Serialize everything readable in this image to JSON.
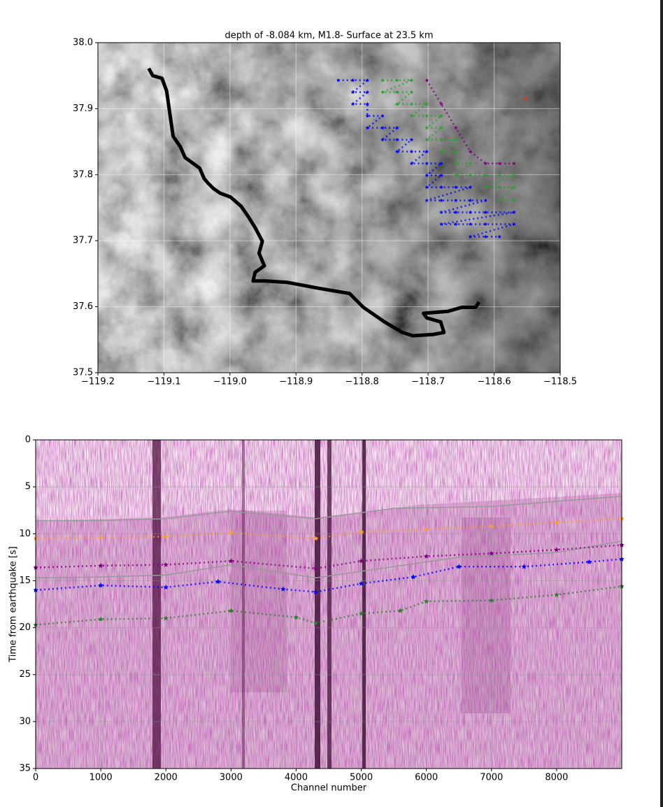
{
  "chart_data": [
    {
      "type": "scatter",
      "title": "depth of -8.084 km, M1.8- Surface at 23.5 km",
      "xlim": [
        -119.2,
        -118.5
      ],
      "xticks": [
        {
          "value": -119.2,
          "label": "−119.2"
        },
        {
          "value": -119.1,
          "label": "−119.1"
        },
        {
          "value": -119.0,
          "label": "−119.0"
        },
        {
          "value": -118.9,
          "label": "−118.9"
        },
        {
          "value": -118.8,
          "label": "−118.8"
        },
        {
          "value": -118.7,
          "label": "−118.7"
        },
        {
          "value": -118.6,
          "label": "−118.6"
        },
        {
          "value": -118.5,
          "label": "−118.5"
        }
      ],
      "ylim": [
        37.5,
        38.0
      ],
      "yticks": [
        37.5,
        37.6,
        37.7,
        37.8,
        37.9,
        {
          "value": 38.0,
          "label": "38.0"
        }
      ],
      "grid": true,
      "series": [
        {
          "color": "#000000",
          "line": true,
          "x": [
            -119.123,
            -119.117,
            -119.103,
            -119.096,
            -119.09,
            -119.086,
            -119.075,
            -119.068,
            -119.046,
            -119.039,
            -119.033,
            -119.025,
            -119.015,
            -118.999,
            -118.983,
            -118.972,
            -118.962,
            -118.951,
            -118.956,
            -118.948,
            -118.962,
            -118.965,
            -118.946,
            -118.914,
            -118.866,
            -118.819,
            -118.798,
            -118.766,
            -118.739,
            -118.723,
            -118.692,
            -118.676,
            -118.681,
            -118.702,
            -118.707,
            -118.67,
            -118.649,
            -118.628,
            -118.623
          ],
          "values": [
            37.961,
            37.95,
            37.946,
            37.927,
            37.885,
            37.858,
            37.842,
            37.826,
            37.81,
            37.794,
            37.787,
            37.779,
            37.772,
            37.766,
            37.752,
            37.736,
            37.72,
            37.699,
            37.681,
            37.662,
            37.652,
            37.639,
            37.639,
            37.637,
            37.628,
            37.62,
            37.599,
            37.577,
            37.561,
            37.556,
            37.558,
            37.561,
            37.577,
            37.583,
            37.59,
            37.593,
            37.599,
            37.599,
            37.607
          ]
        },
        {
          "color": "#0000ff",
          "marker": "*",
          "x": [
            -118.836,
            -118.814,
            -118.792,
            -118.814,
            -118.792,
            -118.814,
            -118.792,
            -118.792,
            -118.769,
            -118.792,
            -118.769,
            -118.747,
            -118.769,
            -118.747,
            -118.725,
            -118.747,
            -118.725,
            -118.702,
            -118.725,
            -118.702,
            -118.68,
            -118.702,
            -118.68,
            -118.702,
            -118.68,
            -118.658,
            -118.636,
            -118.702,
            -118.68,
            -118.658,
            -118.636,
            -118.613,
            -118.68,
            -118.658,
            -118.636,
            -118.613,
            -118.57,
            -118.68,
            -118.658,
            -118.636,
            -118.613,
            -118.57,
            -118.636,
            -118.613,
            -118.592
          ],
          "values": [
            37.943,
            37.943,
            37.943,
            37.925,
            37.925,
            37.907,
            37.907,
            37.889,
            37.889,
            37.871,
            37.871,
            37.871,
            37.853,
            37.853,
            37.853,
            37.835,
            37.835,
            37.835,
            37.817,
            37.817,
            37.817,
            37.799,
            37.799,
            37.781,
            37.781,
            37.781,
            37.781,
            37.761,
            37.761,
            37.761,
            37.761,
            37.761,
            37.743,
            37.743,
            37.743,
            37.743,
            37.743,
            37.725,
            37.725,
            37.725,
            37.725,
            37.725,
            37.706,
            37.706,
            37.706
          ]
        },
        {
          "color": "#2ca02c",
          "marker": "*",
          "x": [
            -118.769,
            -118.747,
            -118.725,
            -118.769,
            -118.747,
            -118.725,
            -118.747,
            -118.725,
            -118.702,
            -118.725,
            -118.702,
            -118.68,
            -118.702,
            -118.68,
            -118.702,
            -118.68,
            -118.658,
            -118.68,
            -118.658,
            -118.658,
            -118.636,
            -118.658,
            -118.636,
            -118.613,
            -118.592,
            -118.57,
            -118.613,
            -118.592,
            -118.57,
            -118.592,
            -118.57
          ],
          "values": [
            37.943,
            37.943,
            37.943,
            37.925,
            37.925,
            37.925,
            37.907,
            37.907,
            37.907,
            37.889,
            37.889,
            37.889,
            37.871,
            37.871,
            37.853,
            37.853,
            37.853,
            37.835,
            37.835,
            37.817,
            37.817,
            37.799,
            37.799,
            37.799,
            37.799,
            37.799,
            37.781,
            37.781,
            37.781,
            37.761,
            37.761
          ]
        },
        {
          "color": "#800080",
          "marker": "*",
          "x": [
            -118.702,
            -118.68,
            -118.658,
            -118.636,
            -118.613,
            -118.592,
            -118.57
          ],
          "values": [
            37.943,
            37.907,
            37.871,
            37.835,
            37.817,
            37.817,
            37.817
          ]
        },
        {
          "color": "#e03010",
          "marker": "*",
          "x": [
            -118.552
          ],
          "values": [
            37.915
          ]
        }
      ]
    },
    {
      "type": "line",
      "x_label": "Channel number",
      "y_label": "Time from earthquake [s]",
      "xlim": [
        0,
        9000
      ],
      "xticks": [
        0,
        1000,
        2000,
        3000,
        4000,
        5000,
        6000,
        7000,
        8000
      ],
      "ylim": [
        35,
        0
      ],
      "yticks": [
        0,
        5,
        10,
        15,
        20,
        25,
        30,
        35
      ],
      "grid": true,
      "series": [
        {
          "color": "#999999",
          "line": true,
          "x": [
            0,
            1000,
            2000,
            3000,
            4300,
            5500,
            7000,
            9000
          ],
          "values": [
            8.6,
            8.6,
            8.4,
            7.6,
            8.4,
            7.3,
            7.1,
            6.0
          ]
        },
        {
          "color": "#999999",
          "line": true,
          "x": [
            0,
            1000,
            2000,
            3000,
            4300,
            5500,
            6500,
            8000,
            9000
          ],
          "values": [
            14.7,
            14.6,
            14.4,
            13.3,
            14.7,
            13.5,
            12.5,
            12.0,
            10.8
          ]
        },
        {
          "color": "#f5a030",
          "marker": "*",
          "x": [
            0,
            1000,
            2000,
            3000,
            4300,
            5000,
            6000,
            7000,
            8000,
            9000
          ],
          "values": [
            10.5,
            10.4,
            10.3,
            9.9,
            10.5,
            9.8,
            9.5,
            9.2,
            8.8,
            8.4
          ]
        },
        {
          "color": "#800080",
          "marker": "*",
          "x": [
            0,
            1000,
            2000,
            3000,
            4300,
            5000,
            6000,
            7000,
            8000,
            9000
          ],
          "values": [
            13.6,
            13.4,
            13.3,
            12.9,
            13.7,
            12.9,
            12.4,
            12.1,
            11.7,
            11.2
          ]
        },
        {
          "color": "#0000ff",
          "marker": "*",
          "x": [
            0,
            1000,
            2000,
            2800,
            3800,
            4300,
            5000,
            5800,
            6500,
            7500,
            8500,
            9000
          ],
          "values": [
            16.0,
            15.5,
            15.7,
            15.1,
            15.9,
            16.2,
            15.3,
            14.6,
            13.5,
            13.5,
            13.0,
            12.7
          ]
        },
        {
          "color": "#2e7d32",
          "marker": "*",
          "x": [
            0,
            1000,
            2000,
            3000,
            4000,
            4300,
            5000,
            5600,
            6000,
            7000,
            8000,
            9000
          ],
          "values": [
            19.7,
            19.1,
            19.0,
            18.2,
            18.9,
            19.5,
            18.5,
            18.2,
            17.2,
            17.1,
            16.5,
            15.6
          ]
        }
      ]
    }
  ]
}
